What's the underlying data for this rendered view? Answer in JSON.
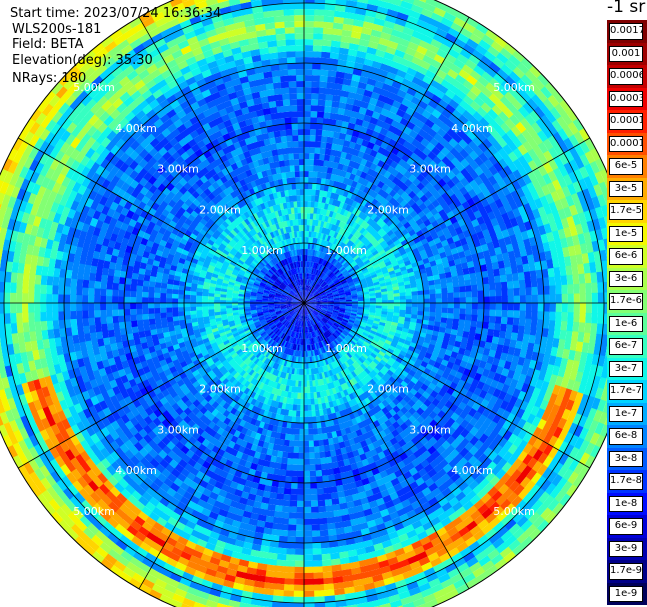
{
  "info": {
    "start_time": "Start time: 2023/07/24 16:36:34",
    "instrument": "WLS200s-181",
    "field": "Field: BETA",
    "elevation": "Elevation(deg): 35.30",
    "nrays": "NRays: 180"
  },
  "unit_label": "-1 sr",
  "range_labels": [
    "1.00km",
    "2.00km",
    "3.00km",
    "4.00km",
    "5.00km"
  ],
  "colorbar": [
    {
      "label": "0.0017",
      "color": "#7f0000"
    },
    {
      "label": "0.001",
      "color": "#9e0000"
    },
    {
      "label": "0.0006",
      "color": "#c40000"
    },
    {
      "label": "0.0003",
      "color": "#ee0000"
    },
    {
      "label": "0.00017",
      "color": "#ff2000"
    },
    {
      "label": "0.0001",
      "color": "#ff5000"
    },
    {
      "label": "6e-5",
      "color": "#ff8000"
    },
    {
      "label": "3e-5",
      "color": "#ffab00"
    },
    {
      "label": "1.7e-5",
      "color": "#ffd500"
    },
    {
      "label": "1e-5",
      "color": "#f4f800"
    },
    {
      "label": "6e-6",
      "color": "#cfff26"
    },
    {
      "label": "3e-6",
      "color": "#aaff4c"
    },
    {
      "label": "1.7e-6",
      "color": "#83ff73"
    },
    {
      "label": "1e-6",
      "color": "#5cff9a"
    },
    {
      "label": "6e-7",
      "color": "#36ffc1"
    },
    {
      "label": "3e-7",
      "color": "#10f7e8"
    },
    {
      "label": "1.7e-7",
      "color": "#00d4ff"
    },
    {
      "label": "1e-7",
      "color": "#00acff"
    },
    {
      "label": "6e-8",
      "color": "#0084ff"
    },
    {
      "label": "3e-8",
      "color": "#005cff"
    },
    {
      "label": "1.7e-8",
      "color": "#0034ff"
    },
    {
      "label": "1e-8",
      "color": "#000cff"
    },
    {
      "label": "6e-9",
      "color": "#0000d8"
    },
    {
      "label": "3e-9",
      "color": "#0000b0"
    },
    {
      "label": "1.7e-9",
      "color": "#000088"
    },
    {
      "label": "1e-9",
      "color": "#00005a"
    }
  ],
  "chart_data": {
    "type": "heatmap",
    "projection": "polar PPI scan",
    "field": "BETA",
    "elevation_deg": 35.3,
    "nrays": 180,
    "range_rings_km": [
      1,
      2,
      3,
      4,
      5
    ],
    "max_range_km": 5.5,
    "azimuth_spokes_deg": [
      0,
      30,
      60,
      90,
      120,
      150,
      180,
      210,
      240,
      270,
      300,
      330
    ],
    "colorscale": "log, 1e-9 to 0.0017 m-1 sr-1",
    "approx_range_profile": [
      {
        "range_km": 0.0,
        "beta": 1e-08
      },
      {
        "range_km": 0.7,
        "beta": 1.7e-08
      },
      {
        "range_km": 1.0,
        "beta": 1.7e-07
      },
      {
        "range_km": 1.5,
        "beta": 3e-07
      },
      {
        "range_km": 2.0,
        "beta": 6e-08
      },
      {
        "range_km": 3.0,
        "beta": 3e-08
      },
      {
        "range_km": 4.0,
        "beta": 6e-08
      },
      {
        "range_km": 4.6,
        "beta": 3e-06
      },
      {
        "range_km": 5.0,
        "beta": 1e-07
      },
      {
        "range_km": 5.3,
        "beta": 1.7e-06
      }
    ]
  }
}
